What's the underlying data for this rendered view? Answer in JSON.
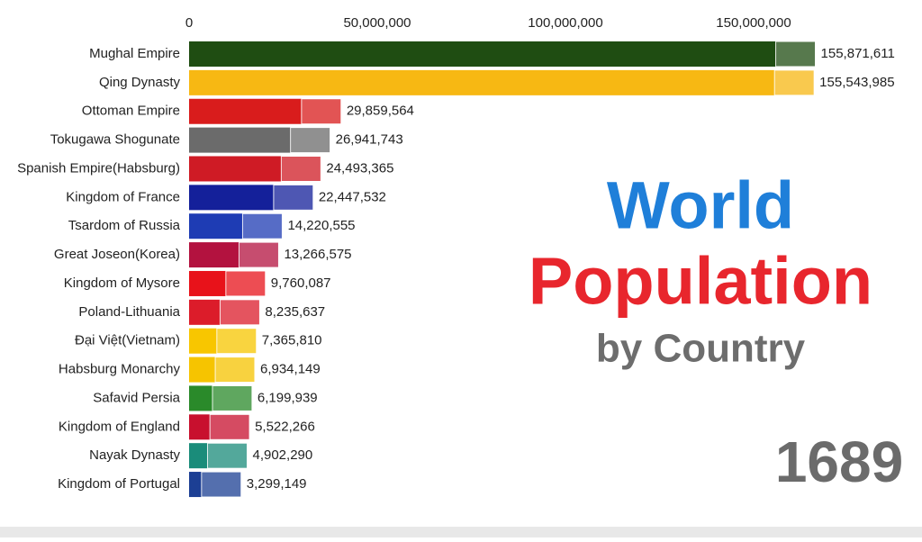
{
  "chart_data": {
    "type": "hbar",
    "title": {
      "line1": "World",
      "line2": "Population",
      "line3": "by Country"
    },
    "year": "1689",
    "categories": [
      "Mughal Empire",
      "Qing Dynasty",
      "Ottoman Empire",
      "Tokugawa Shogunate",
      "Spanish Empire(Habsburg)",
      "Kingdom of France",
      "Tsardom of Russia",
      "Great Joseon(Korea)",
      "Kingdom of Mysore",
      "Poland-Lithuania",
      "Đại Việt(Vietnam)",
      "Habsburg Monarchy",
      "Safavid Persia",
      "Kingdom of England",
      "Nayak Dynasty",
      "Kingdom of Portugal"
    ],
    "values": [
      155871611,
      155543985,
      29859564,
      26941743,
      24493365,
      22447532,
      14220555,
      13266575,
      9760087,
      8235637,
      7365810,
      6934149,
      6199939,
      5522266,
      4902290,
      3299149
    ],
    "value_labels": [
      "155,871,611",
      "155,543,985",
      "29,859,564",
      "26,941,743",
      "24,493,365",
      "22,447,532",
      "14,220,555",
      "13,266,575",
      "9,760,087",
      "8,235,637",
      "7,365,810",
      "6,934,149",
      "6,199,939",
      "5,522,266",
      "4,902,290",
      "3,299,149"
    ],
    "colors": [
      "#1f4d12",
      "#f7b813",
      "#d91c1c",
      "#6b6b6b",
      "#cf1b25",
      "#14209a",
      "#1e3cb4",
      "#b3123f",
      "#e8121a",
      "#dc1c2a",
      "#f8c600",
      "#f6c400",
      "#2a8a2a",
      "#c8102e",
      "#1a8c7a",
      "#1c3f94"
    ],
    "xlim": [
      0,
      175000000
    ],
    "xticks": [
      0,
      {
        "value": 50000000,
        "label": "50,000,000"
      },
      {
        "value": 100000000,
        "label": "100,000,000"
      },
      {
        "value": 150000000,
        "label": "150,000,000"
      }
    ]
  }
}
